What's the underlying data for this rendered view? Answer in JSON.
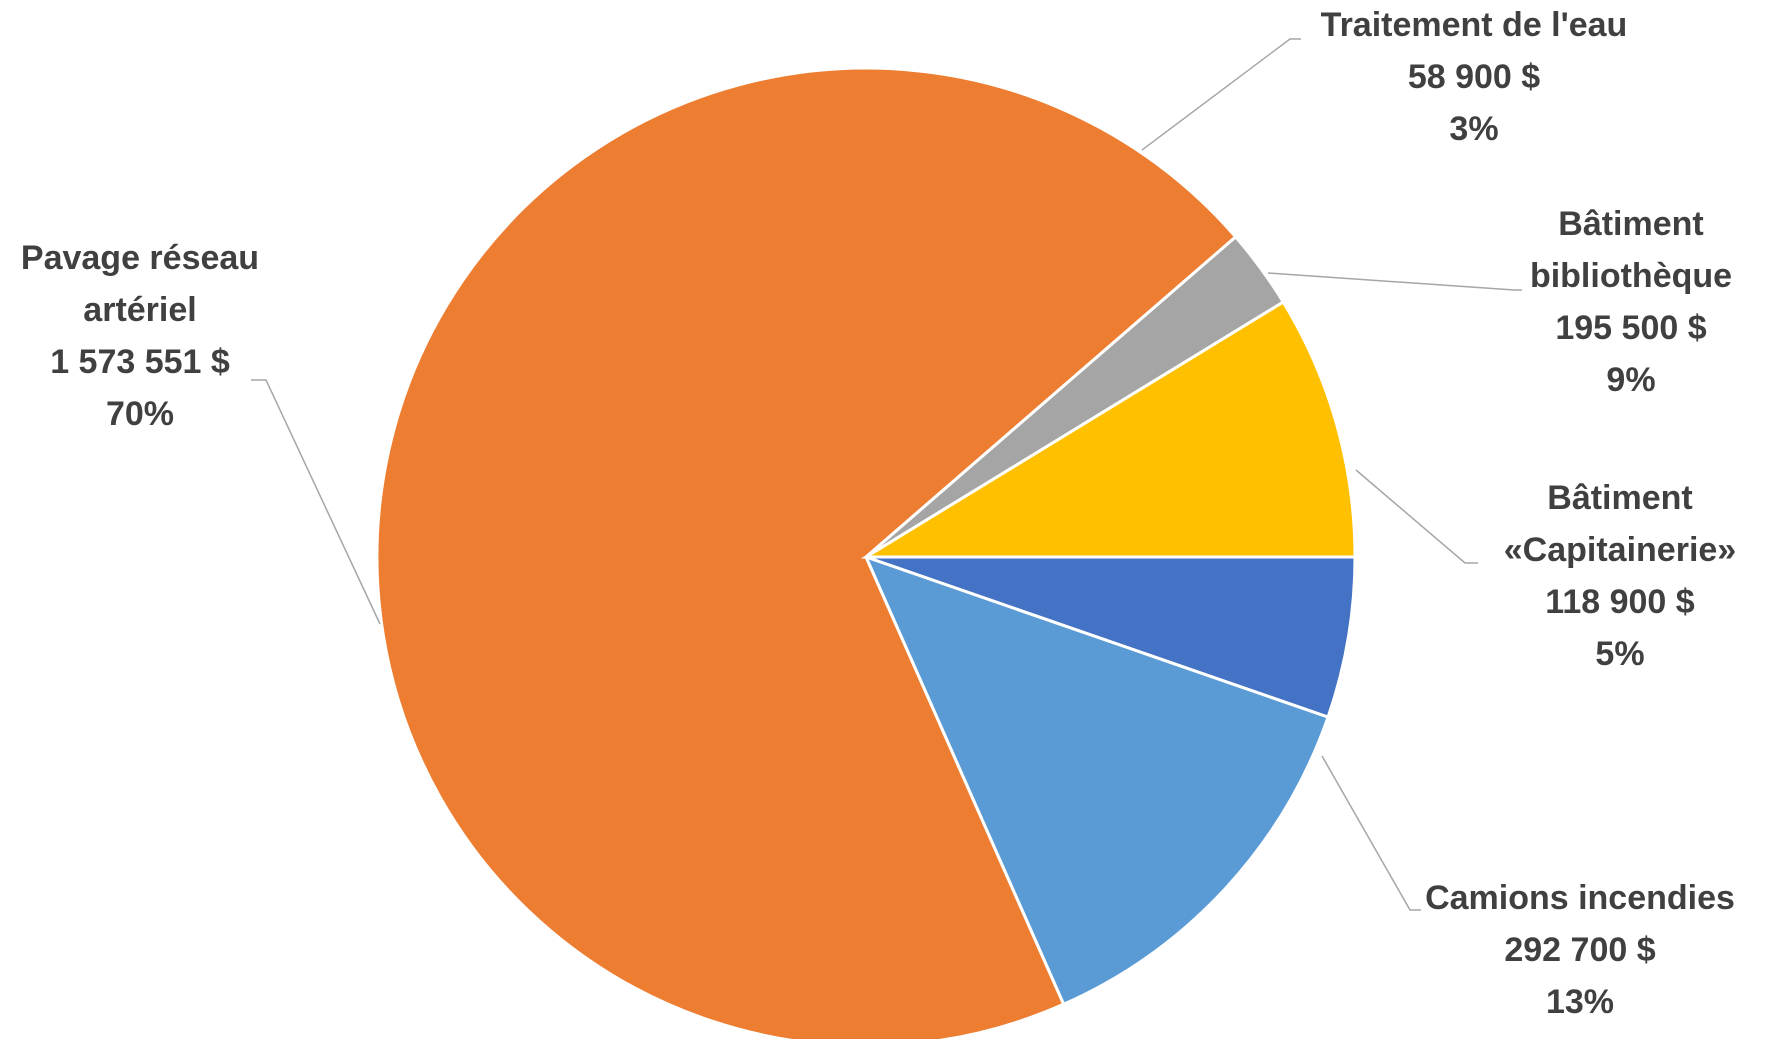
{
  "chart_data": {
    "type": "pie",
    "title": "",
    "start_angle_deg": 0,
    "direction": "clockwise",
    "slices": [
      {
        "name": "Bâtiment «Capitainerie»",
        "value": 118900,
        "percent": 5,
        "color": "#4472C4",
        "label_lines": [
          "Bâtiment",
          "«Capitainerie»",
          "118 900  $",
          "5%"
        ]
      },
      {
        "name": "Camions incendies",
        "value": 292700,
        "percent": 13,
        "color": "#5B9BD5",
        "label_lines": [
          "Camions incendies",
          "292 700  $",
          "13%"
        ]
      },
      {
        "name": "Pavage réseau artériel",
        "value": 1573551,
        "percent": 70,
        "color": "#ED7D31",
        "label_lines": [
          "Pavage réseau",
          "artériel",
          "1 573 551  $",
          "70%"
        ]
      },
      {
        "name": "Traitement de l'eau",
        "value": 58900,
        "percent": 3,
        "color": "#A5A5A5",
        "label_lines": [
          "Traitement de l'eau",
          "58 900  $",
          "3%"
        ]
      },
      {
        "name": "Bâtiment bibliothèque",
        "value": 195500,
        "percent": 9,
        "color": "#FFC000",
        "label_lines": [
          "Bâtiment",
          "bibliothèque",
          "195 500  $",
          "9%"
        ]
      }
    ]
  }
}
